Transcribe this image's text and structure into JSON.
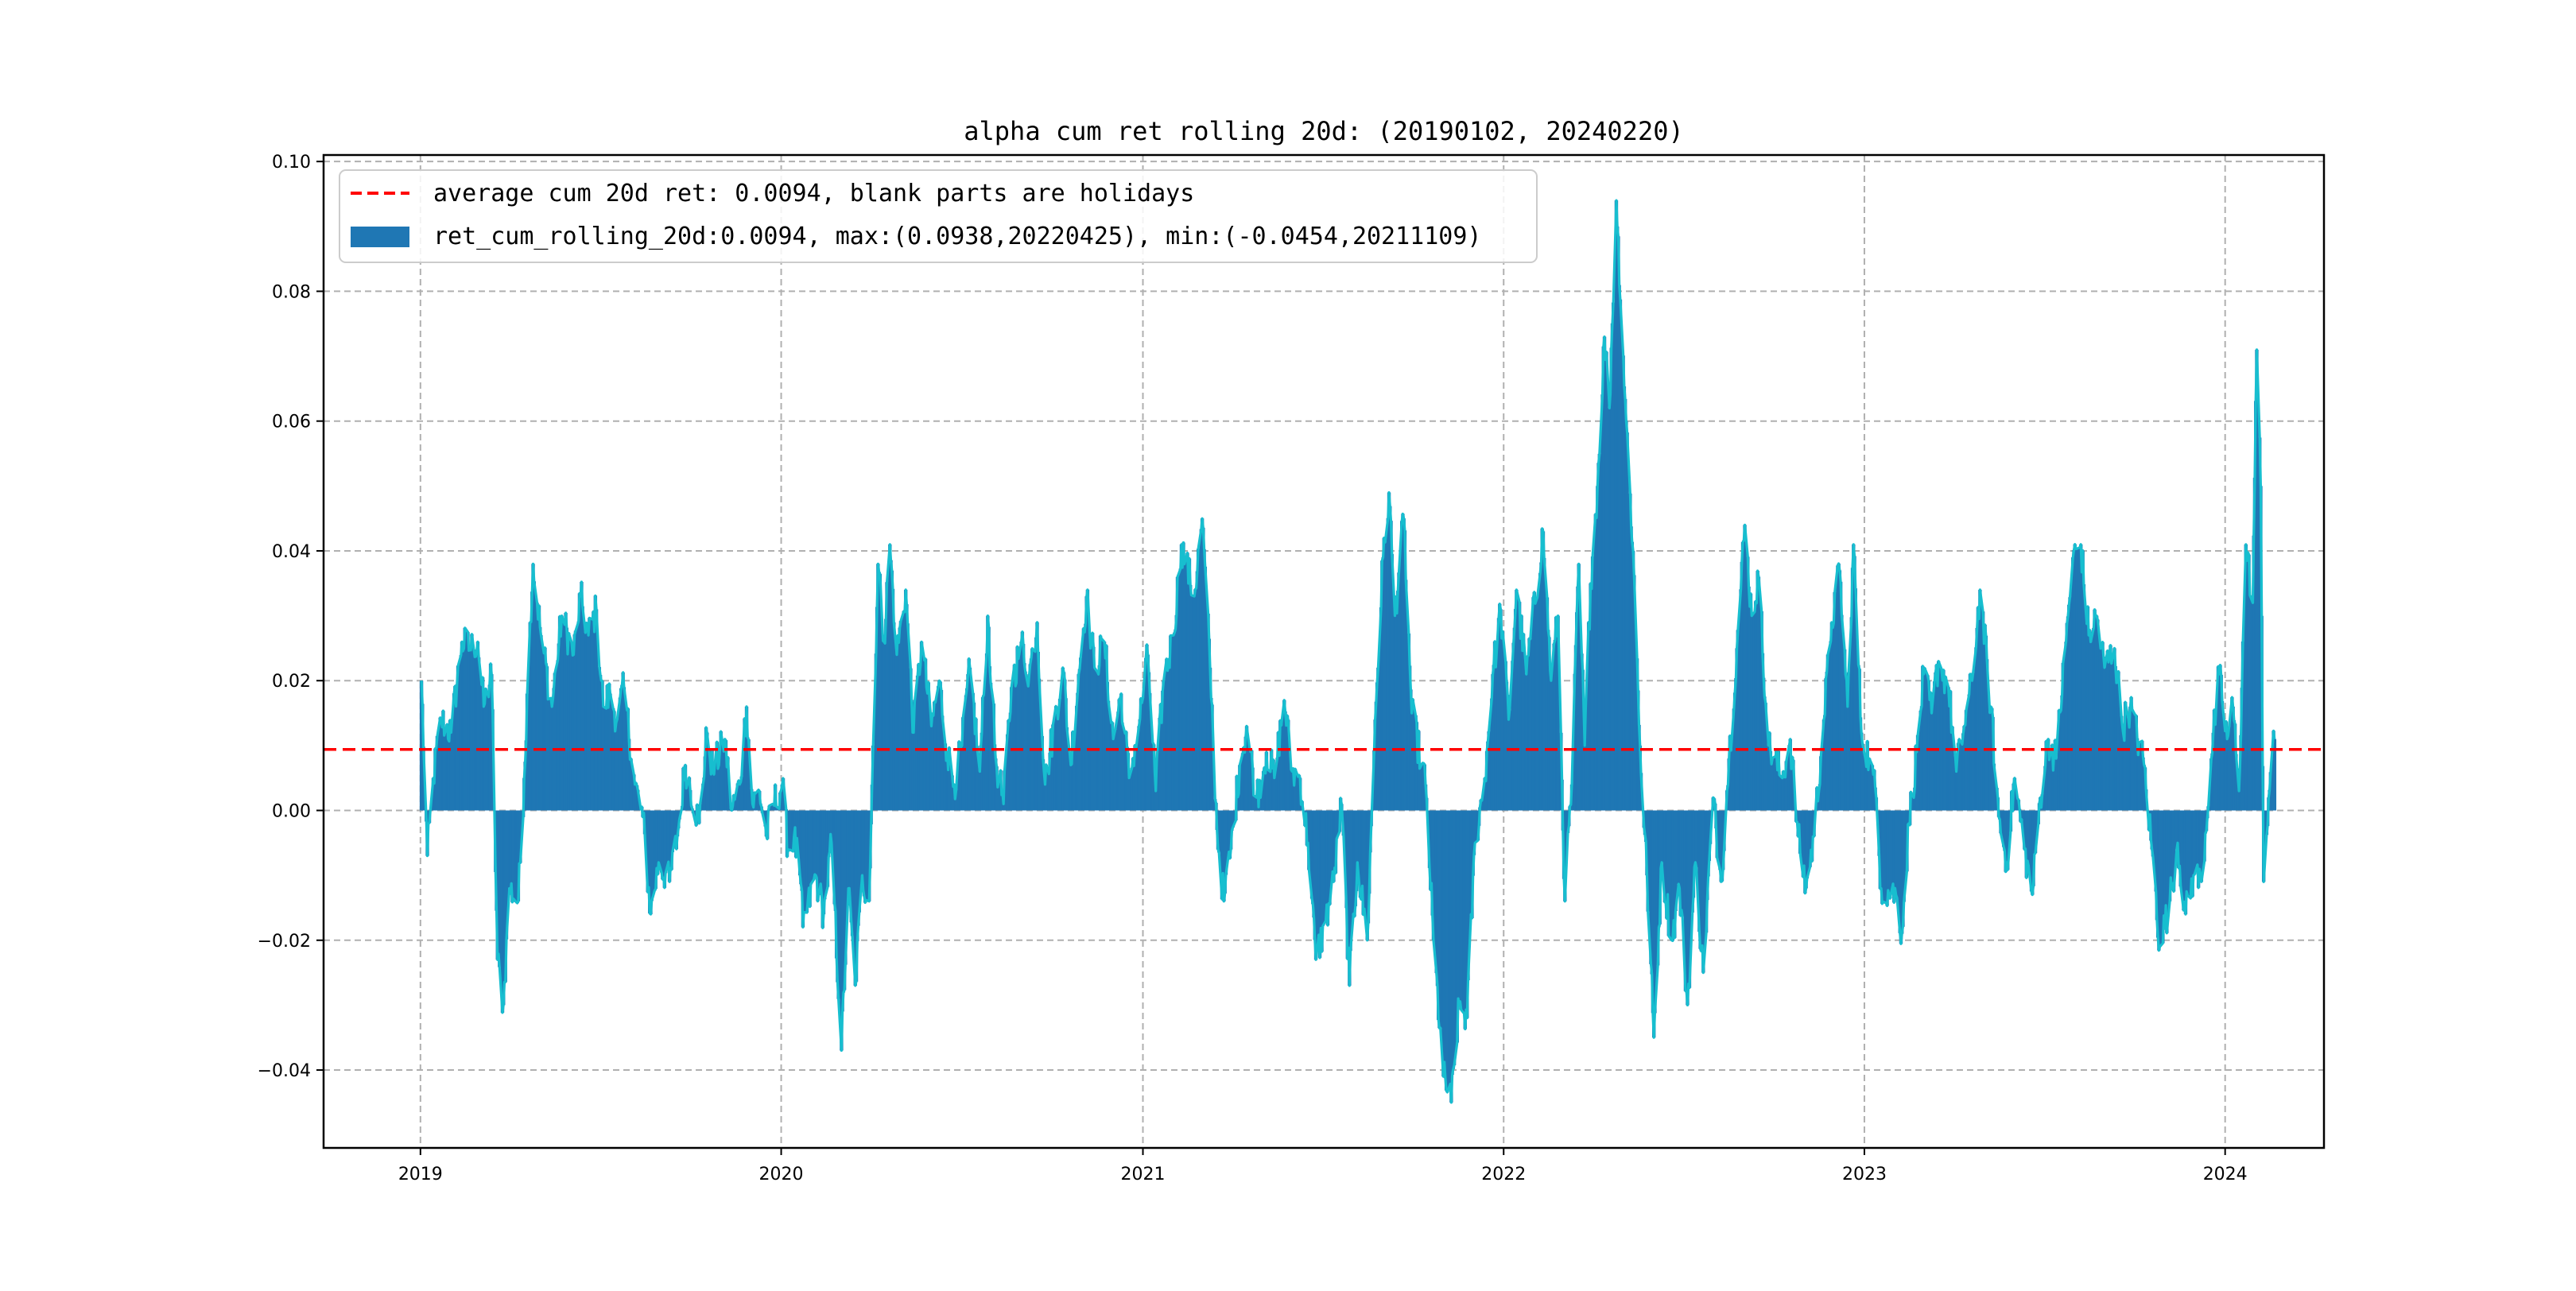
{
  "chart_data": {
    "type": "bar",
    "title": "alpha cum ret rolling 20d: (20190102, 20240220)",
    "xlabel": "",
    "ylabel": "",
    "x_range": [
      "2018-09-25",
      "2024-04-10"
    ],
    "ylim": [
      -0.052,
      0.101
    ],
    "grid": true,
    "grid_style": "dashed",
    "legend_position": "upper-left",
    "x_ticks": [
      {
        "date": "2019-01-01",
        "label": "2019"
      },
      {
        "date": "2020-01-01",
        "label": "2020"
      },
      {
        "date": "2021-01-01",
        "label": "2021"
      },
      {
        "date": "2022-01-01",
        "label": "2022"
      },
      {
        "date": "2023-01-01",
        "label": "2023"
      },
      {
        "date": "2024-01-01",
        "label": "2024"
      }
    ],
    "y_ticks": [
      {
        "value": 0.1,
        "label": "0.10"
      },
      {
        "value": 0.08,
        "label": "0.08"
      },
      {
        "value": 0.06,
        "label": "0.06"
      },
      {
        "value": 0.04,
        "label": "0.04"
      },
      {
        "value": 0.02,
        "label": "0.02"
      },
      {
        "value": 0.0,
        "label": "0.00"
      },
      {
        "value": -0.02,
        "label": "−0.02"
      },
      {
        "value": -0.04,
        "label": "−0.04"
      }
    ],
    "average_line": {
      "value": 0.0094,
      "color": "#ff0000",
      "label": "average cum 20d ret: 0.0094, blank parts are holidays"
    },
    "series": [
      {
        "name": "ret_cum_rolling_20d:0.0094, max:(0.0938,20220425), min:(-0.0454,20211109)",
        "kind": "bar",
        "color": "#1f77b4"
      },
      {
        "kind": "line",
        "color": "#17becf"
      }
    ],
    "anchors": [
      [
        "2019-01-02",
        0.02
      ],
      [
        "2019-01-08",
        -0.007
      ],
      [
        "2019-01-14",
        0.005
      ],
      [
        "2019-01-22",
        0.014
      ],
      [
        "2019-02-01",
        0.012
      ],
      [
        "2019-02-12",
        0.026
      ],
      [
        "2019-02-20",
        0.025
      ],
      [
        "2019-02-28",
        0.026
      ],
      [
        "2019-03-06",
        0.016
      ],
      [
        "2019-03-14",
        0.021
      ],
      [
        "2019-03-20",
        -0.023
      ],
      [
        "2019-03-26",
        -0.03
      ],
      [
        "2019-04-01",
        -0.012
      ],
      [
        "2019-04-10",
        -0.014
      ],
      [
        "2019-04-16",
        0.005
      ],
      [
        "2019-04-22",
        0.029
      ],
      [
        "2019-04-25",
        0.038
      ],
      [
        "2019-05-03",
        0.027
      ],
      [
        "2019-05-14",
        0.016
      ],
      [
        "2019-05-24",
        0.03
      ],
      [
        "2019-06-05",
        0.024
      ],
      [
        "2019-06-12",
        0.033
      ],
      [
        "2019-06-20",
        0.027
      ],
      [
        "2019-06-28",
        0.031
      ],
      [
        "2019-07-05",
        0.016
      ],
      [
        "2019-07-12",
        0.018
      ],
      [
        "2019-07-19",
        0.014
      ],
      [
        "2019-07-26",
        0.019
      ],
      [
        "2019-08-06",
        0.004
      ],
      [
        "2019-08-14",
        -0.001
      ],
      [
        "2019-08-22",
        -0.016
      ],
      [
        "2019-08-30",
        -0.008
      ],
      [
        "2019-09-10",
        -0.011
      ],
      [
        "2019-09-18",
        -0.004
      ],
      [
        "2019-09-26",
        0.007
      ],
      [
        "2019-10-10",
        -0.002
      ],
      [
        "2019-10-18",
        0.012
      ],
      [
        "2019-10-24",
        0.006
      ],
      [
        "2019-11-05",
        0.011
      ],
      [
        "2019-11-12",
        0.0
      ],
      [
        "2019-11-20",
        0.004
      ],
      [
        "2019-11-27",
        0.016
      ],
      [
        "2019-12-03",
        0.001
      ],
      [
        "2019-12-10",
        0.003
      ],
      [
        "2019-12-17",
        -0.004
      ],
      [
        "2019-12-24",
        0.001
      ],
      [
        "2020-01-02",
        0.004
      ],
      [
        "2020-01-08",
        -0.006
      ],
      [
        "2020-01-14",
        -0.004
      ],
      [
        "2020-01-20",
        -0.01
      ],
      [
        "2020-01-23",
        -0.018
      ],
      [
        "2020-02-05",
        -0.01
      ],
      [
        "2020-02-13",
        -0.016
      ],
      [
        "2020-02-21",
        -0.005
      ],
      [
        "2020-03-02",
        -0.037
      ],
      [
        "2020-03-09",
        -0.012
      ],
      [
        "2020-03-16",
        -0.027
      ],
      [
        "2020-03-23",
        -0.01
      ],
      [
        "2020-03-30",
        -0.014
      ],
      [
        "2020-04-03",
        0.01
      ],
      [
        "2020-04-08",
        0.038
      ],
      [
        "2020-04-14",
        0.026
      ],
      [
        "2020-04-20",
        0.041
      ],
      [
        "2020-04-27",
        0.024
      ],
      [
        "2020-05-06",
        0.034
      ],
      [
        "2020-05-14",
        0.012
      ],
      [
        "2020-05-22",
        0.026
      ],
      [
        "2020-06-01",
        0.013
      ],
      [
        "2020-06-09",
        0.02
      ],
      [
        "2020-06-17",
        0.009
      ],
      [
        "2020-06-24",
        0.004
      ],
      [
        "2020-07-02",
        0.01
      ],
      [
        "2020-07-10",
        0.022
      ],
      [
        "2020-07-20",
        0.006
      ],
      [
        "2020-07-28",
        0.03
      ],
      [
        "2020-08-05",
        0.008
      ],
      [
        "2020-08-13",
        0.001
      ],
      [
        "2020-08-21",
        0.019
      ],
      [
        "2020-08-31",
        0.026
      ],
      [
        "2020-09-08",
        0.021
      ],
      [
        "2020-09-16",
        0.029
      ],
      [
        "2020-09-24",
        0.004
      ],
      [
        "2020-10-12",
        0.022
      ],
      [
        "2020-10-20",
        0.007
      ],
      [
        "2020-10-28",
        0.021
      ],
      [
        "2020-11-05",
        0.033
      ],
      [
        "2020-11-13",
        0.022
      ],
      [
        "2020-11-23",
        0.026
      ],
      [
        "2020-12-02",
        0.011
      ],
      [
        "2020-12-10",
        0.018
      ],
      [
        "2020-12-18",
        0.005
      ],
      [
        "2020-12-28",
        0.013
      ],
      [
        "2021-01-06",
        0.024
      ],
      [
        "2021-01-14",
        0.003
      ],
      [
        "2021-01-22",
        0.02
      ],
      [
        "2021-02-01",
        0.027
      ],
      [
        "2021-02-09",
        0.041
      ],
      [
        "2021-02-22",
        0.033
      ],
      [
        "2021-03-02",
        0.045
      ],
      [
        "2021-03-10",
        0.022
      ],
      [
        "2021-03-17",
        -0.003
      ],
      [
        "2021-03-24",
        -0.014
      ],
      [
        "2021-03-31",
        -0.006
      ],
      [
        "2021-04-09",
        0.007
      ],
      [
        "2021-04-16",
        0.013
      ],
      [
        "2021-04-26",
        0.002
      ],
      [
        "2021-05-06",
        0.009
      ],
      [
        "2021-05-14",
        0.005
      ],
      [
        "2021-05-24",
        0.017
      ],
      [
        "2021-06-01",
        0.006
      ],
      [
        "2021-06-09",
        0.005
      ],
      [
        "2021-06-17",
        -0.005
      ],
      [
        "2021-06-25",
        -0.023
      ],
      [
        "2021-07-05",
        -0.017
      ],
      [
        "2021-07-13",
        -0.011
      ],
      [
        "2021-07-21",
        0.001
      ],
      [
        "2021-07-29",
        -0.027
      ],
      [
        "2021-08-06",
        -0.008
      ],
      [
        "2021-08-16",
        -0.02
      ],
      [
        "2021-08-24",
        0.014
      ],
      [
        "2021-09-01",
        0.039
      ],
      [
        "2021-09-07",
        0.049
      ],
      [
        "2021-09-13",
        0.03
      ],
      [
        "2021-09-22",
        0.045
      ],
      [
        "2021-09-30",
        0.015
      ],
      [
        "2021-10-14",
        0.004
      ],
      [
        "2021-10-22",
        -0.02
      ],
      [
        "2021-11-01",
        -0.041
      ],
      [
        "2021-11-09",
        -0.045
      ],
      [
        "2021-11-17",
        -0.03
      ],
      [
        "2021-11-25",
        -0.032
      ],
      [
        "2021-12-03",
        -0.005
      ],
      [
        "2021-12-13",
        0.005
      ],
      [
        "2021-12-21",
        0.021
      ],
      [
        "2021-12-29",
        0.031
      ],
      [
        "2022-01-06",
        0.014
      ],
      [
        "2022-01-14",
        0.034
      ],
      [
        "2022-01-24",
        0.021
      ],
      [
        "2022-02-10",
        0.043
      ],
      [
        "2022-02-18",
        0.02
      ],
      [
        "2022-02-25",
        0.03
      ],
      [
        "2022-03-04",
        -0.014
      ],
      [
        "2022-03-11",
        0.004
      ],
      [
        "2022-03-18",
        0.038
      ],
      [
        "2022-03-24",
        0.01
      ],
      [
        "2022-03-30",
        0.035
      ],
      [
        "2022-04-06",
        0.05
      ],
      [
        "2022-04-13",
        0.073
      ],
      [
        "2022-04-18",
        0.062
      ],
      [
        "2022-04-25",
        0.094
      ],
      [
        "2022-05-05",
        0.06
      ],
      [
        "2022-05-12",
        0.04
      ],
      [
        "2022-05-19",
        0.01
      ],
      [
        "2022-05-26",
        -0.01
      ],
      [
        "2022-06-02",
        -0.035
      ],
      [
        "2022-06-10",
        -0.008
      ],
      [
        "2022-06-20",
        -0.02
      ],
      [
        "2022-06-28",
        -0.012
      ],
      [
        "2022-07-06",
        -0.03
      ],
      [
        "2022-07-14",
        -0.008
      ],
      [
        "2022-07-22",
        -0.025
      ],
      [
        "2022-08-01",
        0.002
      ],
      [
        "2022-08-09",
        -0.011
      ],
      [
        "2022-08-17",
        0.008
      ],
      [
        "2022-08-25",
        0.025
      ],
      [
        "2022-09-02",
        0.044
      ],
      [
        "2022-09-09",
        0.03
      ],
      [
        "2022-09-16",
        0.036
      ],
      [
        "2022-09-26",
        0.01
      ],
      [
        "2022-10-10",
        0.005
      ],
      [
        "2022-10-18",
        0.011
      ],
      [
        "2022-10-26",
        -0.004
      ],
      [
        "2022-11-03",
        -0.012
      ],
      [
        "2022-11-11",
        -0.004
      ],
      [
        "2022-11-21",
        0.014
      ],
      [
        "2022-11-29",
        0.029
      ],
      [
        "2022-12-07",
        0.037
      ],
      [
        "2022-12-15",
        0.016
      ],
      [
        "2022-12-21",
        0.041
      ],
      [
        "2022-12-29",
        0.012
      ],
      [
        "2023-01-06",
        0.008
      ],
      [
        "2023-01-13",
        0.002
      ],
      [
        "2023-01-18",
        -0.012
      ],
      [
        "2023-02-02",
        -0.013
      ],
      [
        "2023-02-08",
        -0.019
      ],
      [
        "2023-02-15",
        -0.002
      ],
      [
        "2023-02-23",
        0.009
      ],
      [
        "2023-03-02",
        0.021
      ],
      [
        "2023-03-10",
        0.015
      ],
      [
        "2023-03-17",
        0.023
      ],
      [
        "2023-03-27",
        0.019
      ],
      [
        "2023-04-04",
        0.006
      ],
      [
        "2023-04-12",
        0.013
      ],
      [
        "2023-04-20",
        0.02
      ],
      [
        "2023-04-28",
        0.034
      ],
      [
        "2023-05-09",
        0.016
      ],
      [
        "2023-05-17",
        -0.001
      ],
      [
        "2023-05-25",
        -0.008
      ],
      [
        "2023-06-02",
        0.005
      ],
      [
        "2023-06-12",
        -0.006
      ],
      [
        "2023-06-20",
        -0.013
      ],
      [
        "2023-06-28",
        0.002
      ],
      [
        "2023-07-06",
        0.011
      ],
      [
        "2023-07-14",
        0.008
      ],
      [
        "2023-07-24",
        0.026
      ],
      [
        "2023-07-31",
        0.039
      ],
      [
        "2023-08-08",
        0.041
      ],
      [
        "2023-08-16",
        0.027
      ],
      [
        "2023-08-24",
        0.03
      ],
      [
        "2023-09-01",
        0.022
      ],
      [
        "2023-09-11",
        0.025
      ],
      [
        "2023-09-19",
        0.013
      ],
      [
        "2023-09-27",
        0.016
      ],
      [
        "2023-10-11",
        0.007
      ],
      [
        "2023-10-19",
        -0.006
      ],
      [
        "2023-10-27",
        -0.021
      ],
      [
        "2023-11-06",
        -0.014
      ],
      [
        "2023-11-14",
        -0.005
      ],
      [
        "2023-11-22",
        -0.016
      ],
      [
        "2023-11-30",
        -0.01
      ],
      [
        "2023-12-08",
        -0.011
      ],
      [
        "2023-12-18",
        0.008
      ],
      [
        "2023-12-26",
        0.021
      ],
      [
        "2024-01-03",
        0.011
      ],
      [
        "2024-01-09",
        0.016
      ],
      [
        "2024-01-15",
        0.003
      ],
      [
        "2024-01-22",
        0.041
      ],
      [
        "2024-01-29",
        0.032
      ],
      [
        "2024-02-02",
        0.071
      ],
      [
        "2024-02-06",
        0.05
      ],
      [
        "2024-02-09",
        -0.011
      ],
      [
        "2024-02-14",
        0.002
      ],
      [
        "2024-02-20",
        0.011
      ]
    ]
  }
}
